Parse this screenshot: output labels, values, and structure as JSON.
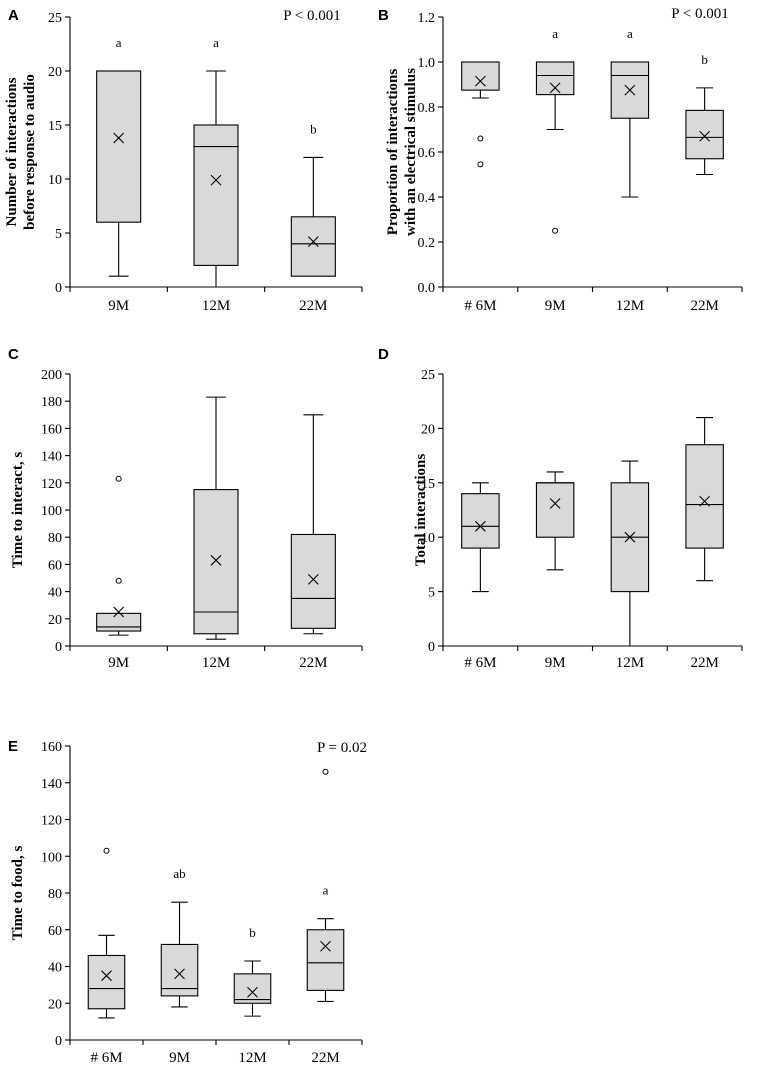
{
  "chart_data": [
    {
      "panel": "A",
      "type": "box",
      "ylabel": [
        "Number of interactions",
        "before response to audio"
      ],
      "ylim": [
        0,
        25
      ],
      "yticks": [
        0,
        5,
        10,
        15,
        20,
        25
      ],
      "ytick_labels": [
        "0",
        "5",
        "10",
        "15",
        "20",
        "25"
      ],
      "categories": [
        "9M",
        "12M",
        "22M"
      ],
      "pvalue": "P < 0.001",
      "boxes": [
        {
          "min": 1,
          "q1": 6,
          "median": 20,
          "q3": 20,
          "max": 20,
          "mean": 13.8,
          "outliers": [],
          "letter": "a"
        },
        {
          "min": 0,
          "q1": 2,
          "median": 13,
          "q3": 15,
          "max": 20,
          "mean": 9.9,
          "outliers": [],
          "letter": "a"
        },
        {
          "min": 1,
          "q1": 1,
          "median": 4,
          "q3": 6.5,
          "max": 12,
          "mean": 4.2,
          "outliers": [],
          "letter": "b"
        }
      ]
    },
    {
      "panel": "B",
      "type": "box",
      "ylabel": [
        "Proportion of interactions",
        "with an electrical stimulus"
      ],
      "ylim": [
        0,
        1.2
      ],
      "yticks": [
        0,
        0.2,
        0.4,
        0.6,
        0.8,
        1.0,
        1.2
      ],
      "ytick_labels": [
        "0.0",
        "0.2",
        "0.4",
        "0.6",
        "0.8",
        "1.0",
        "1.2"
      ],
      "categories": [
        "# 6M",
        "9M",
        "12M",
        "22M"
      ],
      "pvalue": "P < 0.001",
      "boxes": [
        {
          "min": 0.84,
          "q1": 0.875,
          "median": 1.0,
          "q3": 1.0,
          "max": 1.0,
          "mean": 0.915,
          "outliers": [
            0.66,
            0.545
          ],
          "letter": ""
        },
        {
          "min": 0.7,
          "q1": 0.855,
          "median": 0.94,
          "q3": 1.0,
          "max": 1.0,
          "mean": 0.885,
          "outliers": [
            0.25
          ],
          "letter": "a"
        },
        {
          "min": 0.4,
          "q1": 0.75,
          "median": 0.94,
          "q3": 1.0,
          "max": 1.0,
          "mean": 0.875,
          "outliers": [],
          "letter": "a"
        },
        {
          "min": 0.5,
          "q1": 0.57,
          "median": 0.665,
          "q3": 0.785,
          "max": 0.885,
          "mean": 0.67,
          "outliers": [],
          "letter": "b"
        }
      ]
    },
    {
      "panel": "C",
      "type": "box",
      "ylabel": [
        "Time to interact, s"
      ],
      "ylim": [
        0,
        200
      ],
      "yticks": [
        0,
        20,
        40,
        60,
        80,
        100,
        120,
        140,
        160,
        180,
        200
      ],
      "ytick_labels": [
        "0",
        "20",
        "40",
        "60",
        "80",
        "100",
        "120",
        "140",
        "160",
        "180",
        "200"
      ],
      "categories": [
        "9M",
        "12M",
        "22M"
      ],
      "pvalue": "",
      "boxes": [
        {
          "min": 8,
          "q1": 11,
          "median": 14,
          "q3": 24,
          "max": 24,
          "mean": 25,
          "outliers": [
            123,
            48
          ],
          "letter": ""
        },
        {
          "min": 5,
          "q1": 9,
          "median": 25,
          "q3": 115,
          "max": 183,
          "mean": 63,
          "outliers": [],
          "letter": ""
        },
        {
          "min": 9,
          "q1": 13,
          "median": 35,
          "q3": 82,
          "max": 170,
          "mean": 49,
          "outliers": [],
          "letter": ""
        }
      ]
    },
    {
      "panel": "D",
      "type": "box",
      "ylabel": [
        "Total interactions"
      ],
      "ylim": [
        0,
        25
      ],
      "yticks": [
        0,
        5,
        10,
        15,
        20,
        25
      ],
      "ytick_labels": [
        "0",
        "5",
        "10",
        "15",
        "20",
        "25"
      ],
      "categories": [
        "# 6M",
        "9M",
        "12M",
        "22M"
      ],
      "pvalue": "",
      "boxes": [
        {
          "min": 5,
          "q1": 9,
          "median": 11,
          "q3": 14,
          "max": 15,
          "mean": 11,
          "outliers": [],
          "letter": ""
        },
        {
          "min": 7,
          "q1": 10,
          "median": 15,
          "q3": 15,
          "max": 16,
          "mean": 13.1,
          "outliers": [],
          "letter": ""
        },
        {
          "min": 0,
          "q1": 5,
          "median": 10,
          "q3": 15,
          "max": 17,
          "mean": 10,
          "outliers": [],
          "letter": ""
        },
        {
          "min": 6,
          "q1": 9,
          "median": 13,
          "q3": 18.5,
          "max": 21,
          "mean": 13.3,
          "outliers": [],
          "letter": ""
        }
      ]
    },
    {
      "panel": "E",
      "type": "box",
      "ylabel": [
        "Time to food, s"
      ],
      "ylim": [
        0,
        160
      ],
      "yticks": [
        0,
        20,
        40,
        60,
        80,
        100,
        120,
        140,
        160
      ],
      "ytick_labels": [
        "0",
        "20",
        "40",
        "60",
        "80",
        "100",
        "120",
        "140",
        "160"
      ],
      "categories": [
        "# 6M",
        "9M",
        "12M",
        "22M"
      ],
      "pvalue": "P = 0.02",
      "boxes": [
        {
          "min": 12,
          "q1": 17,
          "median": 28,
          "q3": 46,
          "max": 57,
          "mean": 35,
          "outliers": [
            103
          ],
          "letter": ""
        },
        {
          "min": 18,
          "q1": 24,
          "median": 28,
          "q3": 52,
          "max": 75,
          "mean": 36,
          "outliers": [],
          "letter": "ab"
        },
        {
          "min": 13,
          "q1": 20,
          "median": 22,
          "q3": 36,
          "max": 43,
          "mean": 26,
          "outliers": [],
          "letter": "b"
        },
        {
          "min": 21,
          "q1": 27,
          "median": 42,
          "q3": 60,
          "max": 66,
          "mean": 51,
          "outliers": [
            146
          ],
          "letter": "a"
        }
      ]
    }
  ]
}
